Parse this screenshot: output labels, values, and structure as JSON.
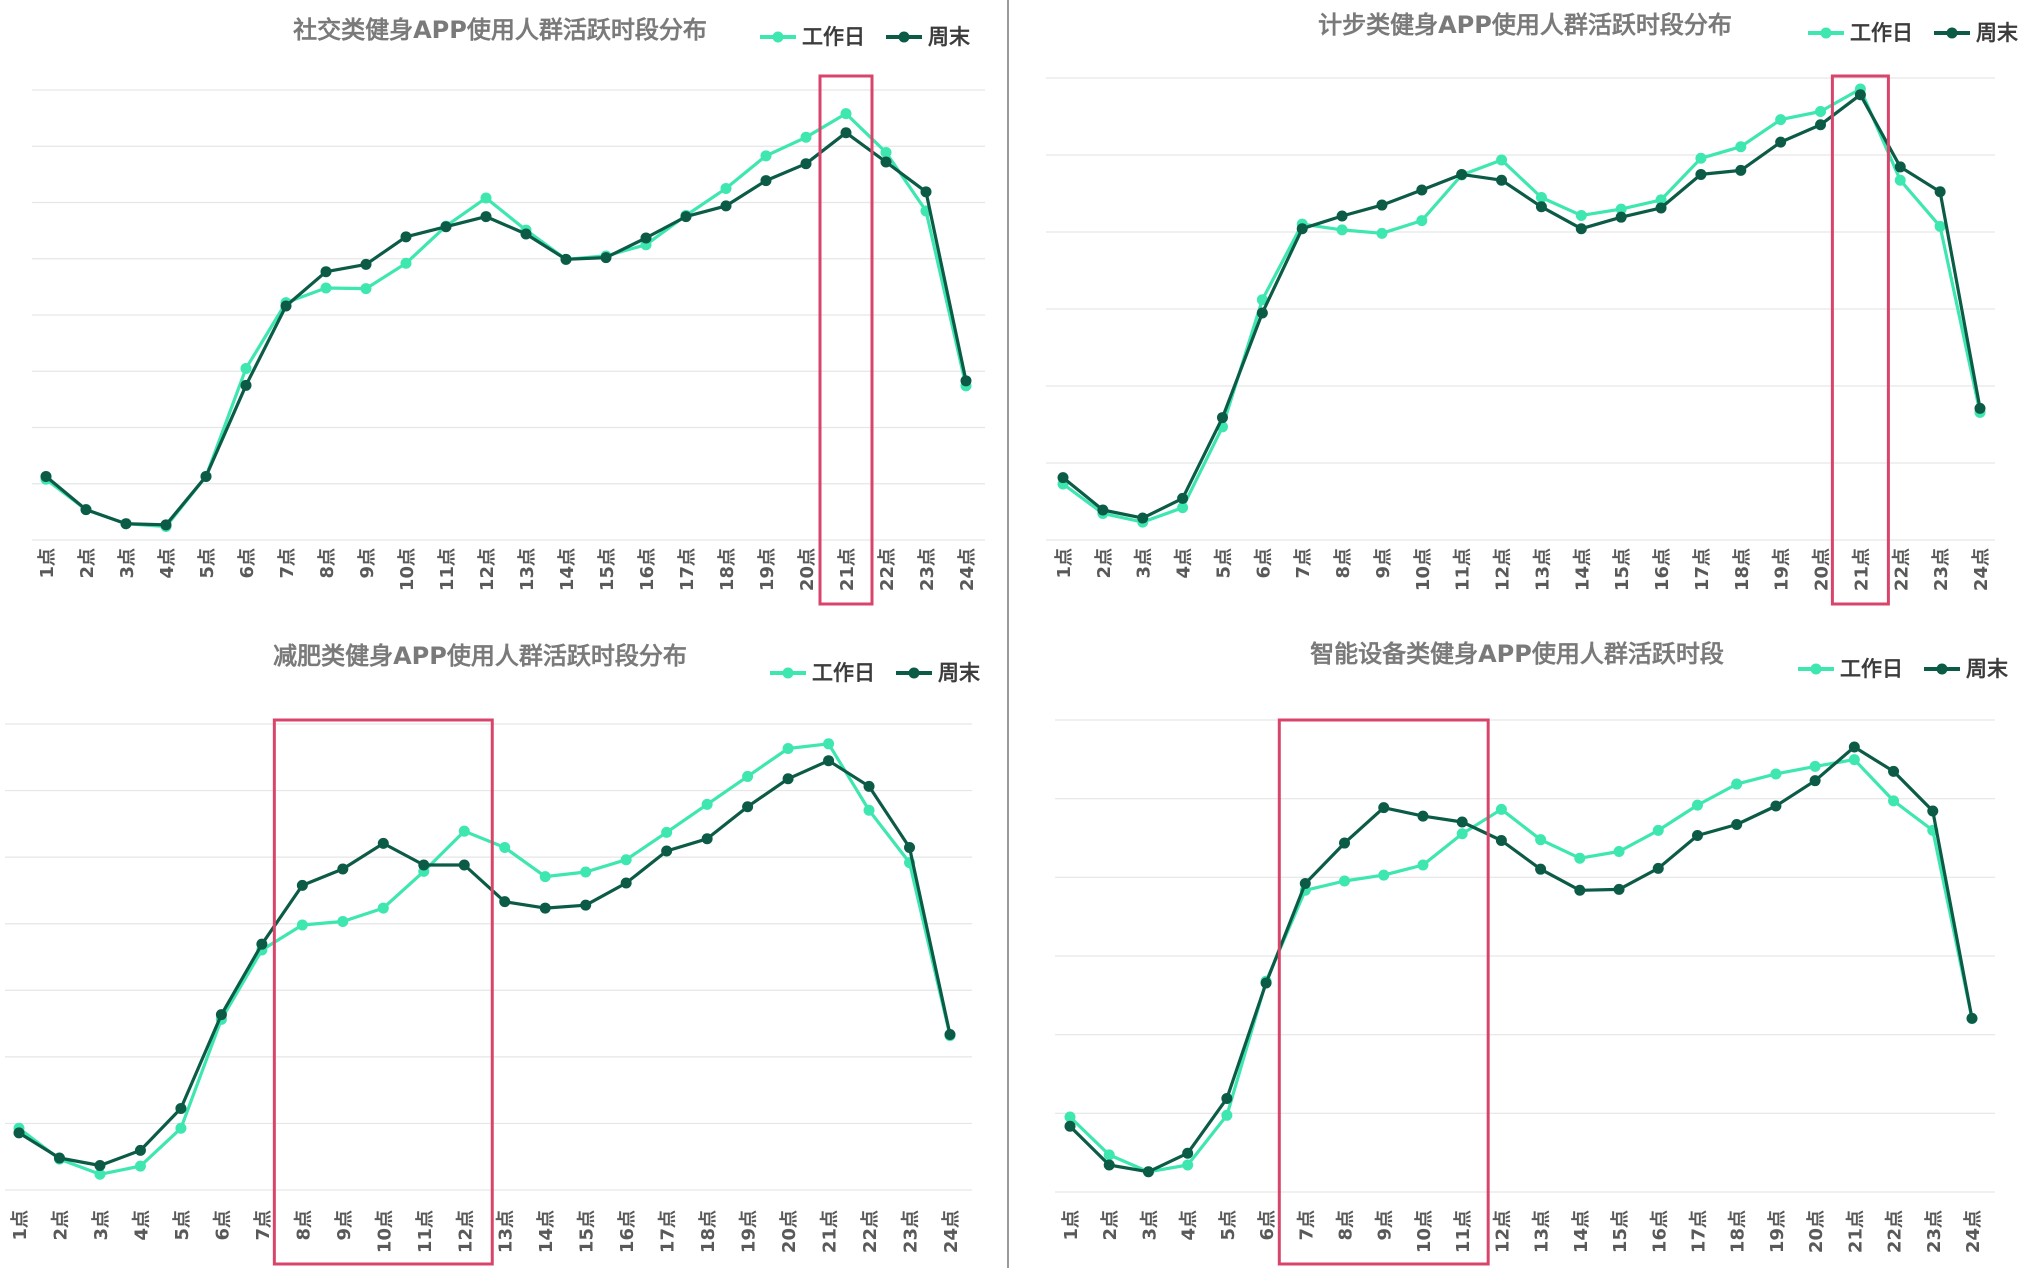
{
  "colors": {
    "workday": "#3ee6b0",
    "weekend": "#0b5b46",
    "grid": "#e6e6e6",
    "highlight": "#d9456a",
    "title": "#7a7a7a",
    "tick": "#595959"
  },
  "chart_data": [
    {
      "type": "line",
      "title": "社交类健身APP使用人群活跃时段分布",
      "categories": [
        "1点",
        "2点",
        "3点",
        "4点",
        "5点",
        "6点",
        "7点",
        "8点",
        "9点",
        "10点",
        "11点",
        "12点",
        "13点",
        "14点",
        "15点",
        "16点",
        "17点",
        "18点",
        "19点",
        "20点",
        "21点",
        "22点",
        "23点",
        "24点"
      ],
      "series": [
        {
          "name": "工作日",
          "values": [
            10.8,
            5.4,
            2.9,
            2.4,
            11.3,
            30.5,
            42.2,
            44.8,
            44.7,
            49.2,
            55.8,
            60.8,
            55.1,
            49.9,
            50.5,
            52.5,
            57.7,
            62.5,
            68.3,
            71.6,
            75.8,
            68.9,
            58.5,
            27.4
          ]
        },
        {
          "name": "周末",
          "values": [
            11.3,
            5.4,
            2.9,
            2.7,
            11.3,
            27.5,
            41.6,
            47.7,
            49.0,
            53.9,
            55.7,
            57.5,
            54.4,
            49.9,
            50.2,
            53.7,
            57.5,
            59.4,
            63.9,
            66.9,
            72.4,
            67.2,
            61.9,
            28.3
          ]
        }
      ],
      "highlight_range": [
        "21点",
        "21点"
      ],
      "legend_position": "top-right",
      "grid": true
    },
    {
      "type": "line",
      "title": "计步类健身APP使用人群活跃时段分布",
      "categories": [
        "1点",
        "2点",
        "3点",
        "4点",
        "5点",
        "6点",
        "7点",
        "8点",
        "9点",
        "10点",
        "11点",
        "12点",
        "13点",
        "14点",
        "15点",
        "16点",
        "17点",
        "18点",
        "19点",
        "20点",
        "21点",
        "22点",
        "23点",
        "24点"
      ],
      "series": [
        {
          "name": "工作日",
          "values": [
            9.7,
            4.6,
            3.1,
            5.6,
            19.6,
            41.6,
            54.7,
            53.7,
            53.1,
            55.3,
            63.2,
            65.8,
            59.3,
            56.2,
            57.3,
            58.9,
            66.1,
            68.1,
            72.8,
            74.2,
            78.1,
            62.3,
            54.3,
            22.1
          ]
        },
        {
          "name": "周末",
          "values": [
            10.8,
            5.2,
            3.8,
            7.2,
            21.2,
            39.3,
            53.9,
            56.1,
            58.0,
            60.6,
            63.3,
            62.3,
            57.7,
            53.9,
            55.9,
            57.5,
            63.3,
            64.0,
            68.9,
            71.9,
            77.1,
            64.6,
            60.3,
            22.8
          ]
        }
      ],
      "highlight_range": [
        "21点",
        "21点"
      ],
      "legend_position": "top-right",
      "grid": true
    },
    {
      "type": "line",
      "title": "减肥类健身APP使用人群活跃时段分布",
      "categories": [
        "1点",
        "2点",
        "3点",
        "4点",
        "5点",
        "6点",
        "7点",
        "8点",
        "9点",
        "10点",
        "11点",
        "12点",
        "13点",
        "14点",
        "15点",
        "16点",
        "17点",
        "18点",
        "19点",
        "20点",
        "21点",
        "22点",
        "23点",
        "24点"
      ],
      "series": [
        {
          "name": "工作日",
          "values": [
            10.6,
            5.3,
            2.7,
            4.1,
            10.6,
            29.3,
            41.2,
            45.5,
            46.1,
            48.4,
            54.7,
            61.6,
            58.8,
            53.8,
            54.6,
            56.7,
            61.4,
            66.2,
            71.0,
            75.8,
            76.6,
            65.2,
            56.2,
            26.5
          ]
        },
        {
          "name": "周末",
          "values": [
            9.8,
            5.5,
            4.2,
            6.8,
            14.0,
            30.1,
            42.2,
            52.3,
            55.1,
            59.5,
            55.8,
            55.8,
            49.5,
            48.4,
            48.9,
            52.7,
            58.2,
            60.3,
            65.8,
            70.6,
            73.7,
            69.3,
            58.8,
            26.7
          ]
        }
      ],
      "highlight_range": [
        "8点",
        "12点"
      ],
      "legend_position": "top-right",
      "grid": true
    },
    {
      "type": "line",
      "title": "智能设备类健身APP使用人群活跃时段",
      "categories": [
        "1点",
        "2点",
        "3点",
        "4点",
        "5点",
        "6点",
        "7点",
        "8点",
        "9点",
        "10点",
        "11点",
        "12点",
        "13点",
        "14点",
        "15点",
        "16点",
        "17点",
        "18点",
        "19点",
        "20点",
        "21点",
        "22点",
        "23点",
        "24点"
      ],
      "series": [
        {
          "name": "工作日",
          "values": [
            8.9,
            4.4,
            2.4,
            3.2,
            9.1,
            25.0,
            35.8,
            36.9,
            37.6,
            38.8,
            42.5,
            45.4,
            41.8,
            39.6,
            40.4,
            42.9,
            45.9,
            48.4,
            49.6,
            50.5,
            51.3,
            46.4,
            42.9,
            20.6
          ]
        },
        {
          "name": "周末",
          "values": [
            7.8,
            3.2,
            2.4,
            4.6,
            11.1,
            24.8,
            36.6,
            41.4,
            45.6,
            44.6,
            43.9,
            41.7,
            38.3,
            35.8,
            35.9,
            38.4,
            42.3,
            43.6,
            45.8,
            48.8,
            52.8,
            49.9,
            45.2,
            20.6
          ]
        }
      ],
      "highlight_range": [
        "7点",
        "11点"
      ],
      "legend_position": "top-right",
      "grid": true
    }
  ]
}
